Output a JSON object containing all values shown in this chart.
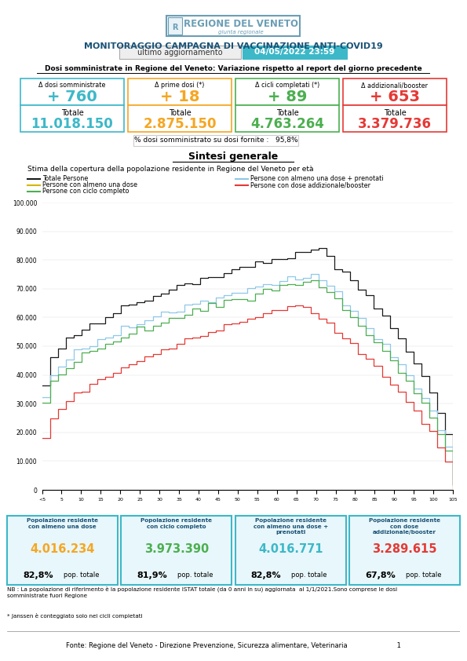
{
  "title_main": "MONITORAGGIO CAMPAGNA DI VACCINAZIONE ANTI-COVID19",
  "header_label": "ultimo aggiornamento",
  "header_date": "04/05/2022 23:59",
  "header_date_bg": "#3db8c8",
  "subtitle": "Dosi somministrate in Regione del Veneto: Variazione rispetto al report del giorno precedente",
  "boxes": [
    {
      "label": "Δ dosi somministrate",
      "delta": "+ 760",
      "delta_color": "#3db8c8",
      "total_label": "Totale",
      "total_value": "11.018.150",
      "total_color": "#3db8c8",
      "border_color": "#3db8c8"
    },
    {
      "label": "Δ prime dosi (*)",
      "delta": "+ 18",
      "delta_color": "#f5a623",
      "total_label": "Totale",
      "total_value": "2.875.150",
      "total_color": "#f5a623",
      "border_color": "#f5a623"
    },
    {
      "label": "Δ cicli completati (*)",
      "delta": "+ 89",
      "delta_color": "#4caf50",
      "total_label": "Totale",
      "total_value": "4.763.264",
      "total_color": "#4caf50",
      "border_color": "#4caf50"
    },
    {
      "label": "Δ addizionali/booster",
      "delta": "+ 653",
      "delta_color": "#e53935",
      "total_label": "Totale",
      "total_value": "3.379.736",
      "total_color": "#e53935",
      "border_color": "#e53935"
    }
  ],
  "pct_label": "% dosi somministrato su dosi fornite :   95,8%",
  "sintesi_title": "Sintesi generale",
  "chart_subtitle": "Stima della copertura della popolazione residente in Regione del Veneto per età",
  "legend_items": [
    {
      "label": "Totale Persone",
      "color": "#1a1a1a"
    },
    {
      "label": "Persone con almeno una dose + prenotati",
      "color": "#8ec8e8"
    },
    {
      "label": "Persone con almeno una dose",
      "color": "#d4b800"
    },
    {
      "label": "Persone con dose addizionale/booster",
      "color": "#e53935"
    },
    {
      "label": "Persone con ciclo completo",
      "color": "#4caf50"
    }
  ],
  "bottom_boxes": [
    {
      "title": "Popolazione residente\ncon almeno una dose",
      "value": "4.016.234",
      "value_color": "#f5a623",
      "pct": "82,8%",
      "pct_label": "pop. totale",
      "border_color": "#3db8c8",
      "bg_color": "#e8f7fb"
    },
    {
      "title": "Popolazione residente\ncon ciclo completo",
      "value": "3.973.390",
      "value_color": "#4caf50",
      "pct": "81,9%",
      "pct_label": "pop. totale",
      "border_color": "#3db8c8",
      "bg_color": "#e8f7fb"
    },
    {
      "title": "Popolazione residente\ncon almeno una dose +\nprenotati",
      "value": "4.016.771",
      "value_color": "#3db8c8",
      "pct": "82,8%",
      "pct_label": "pop. totale",
      "border_color": "#3db8c8",
      "bg_color": "#e8f7fb"
    },
    {
      "title": "Popolazione residente\ncon dose\naddizionale/booster",
      "value": "3.289.615",
      "value_color": "#e53935",
      "pct": "67,8%",
      "pct_label": "pop. totale",
      "border_color": "#3db8c8",
      "bg_color": "#e8f7fb"
    }
  ],
  "footnote1": "NB : La popolazione di riferimento è la popolazione residente ISTAT totale (da 0 anni in su) aggiornata  al 1/1/2021.Sono comprese le dosi\nsomministrate fuori Regione",
  "footnote2": "* Janssen è conteggiato solo nei cicli completati",
  "footer": "Fonte: Regione del Veneto - Direzione Prevenzione, Sicurezza alimentare, Veterinaria                        1"
}
